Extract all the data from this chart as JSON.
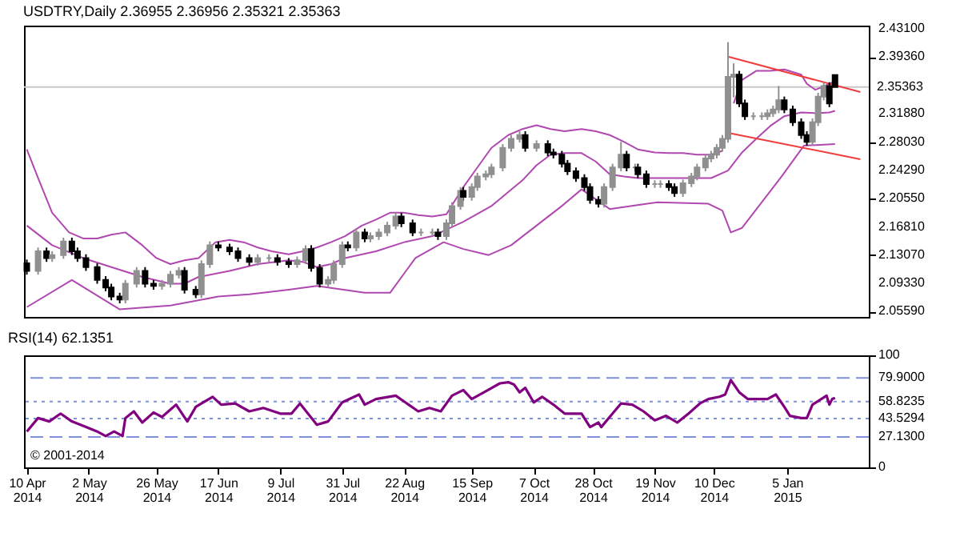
{
  "chart_data": [
    {
      "type": "candlestick",
      "title": "USDTRY,Daily 2.36955 2.36956 2.35321 2.35363",
      "x": [
        "2014-04-10",
        "2014-04-14",
        "2014-04-17",
        "2014-04-19",
        "2014-04-23",
        "2014-04-26",
        "2014-04-28",
        "2014-05-01",
        "2014-05-05",
        "2014-05-08",
        "2014-05-10",
        "2014-05-13",
        "2014-05-15",
        "2014-05-19",
        "2014-05-22",
        "2014-05-25",
        "2014-05-28",
        "2014-05-31",
        "2014-06-03",
        "2014-06-05",
        "2014-06-09",
        "2014-06-11",
        "2014-06-14",
        "2014-06-17",
        "2014-06-21",
        "2014-06-24",
        "2014-06-28",
        "2014-07-01",
        "2014-07-05",
        "2014-07-08",
        "2014-07-12",
        "2014-07-15",
        "2014-07-18",
        "2014-07-20",
        "2014-07-23",
        "2014-07-26",
        "2014-07-28",
        "2014-07-31",
        "2014-08-02",
        "2014-08-05",
        "2014-08-08",
        "2014-08-10",
        "2014-08-13",
        "2014-08-16",
        "2014-08-19",
        "2014-08-21",
        "2014-08-25",
        "2014-08-28",
        "2014-09-01",
        "2014-09-03",
        "2014-09-06",
        "2014-09-08",
        "2014-09-11",
        "2014-09-12",
        "2014-09-15",
        "2014-09-17",
        "2014-09-20",
        "2014-09-22",
        "2014-09-26",
        "2014-09-29",
        "2014-10-02",
        "2014-10-04",
        "2014-10-08",
        "2014-10-12",
        "2014-10-14",
        "2014-10-17",
        "2014-10-19",
        "2014-10-22",
        "2014-10-25",
        "2014-10-27",
        "2014-10-30",
        "2014-11-01",
        "2014-11-04",
        "2014-11-07",
        "2014-11-09",
        "2014-11-12",
        "2014-11-13",
        "2014-11-16",
        "2014-11-19",
        "2014-11-21",
        "2014-11-24",
        "2014-11-26",
        "2014-11-29",
        "2014-12-02",
        "2014-12-04",
        "2014-12-07",
        "2014-12-09",
        "2014-12-11",
        "2014-12-13",
        "2014-12-15",
        "2014-12-17",
        "2014-12-19",
        "2014-12-21",
        "2014-12-24",
        "2014-12-27",
        "2014-12-29",
        "2014-12-31",
        "2015-01-02",
        "2015-01-04",
        "2015-01-07",
        "2015-01-10",
        "2015-01-12",
        "2015-01-14",
        "2015-01-16",
        "2015-01-18",
        "2015-01-20",
        "2015-01-22"
      ],
      "ohlc": [
        [
          2.12,
          2.125,
          2.105,
          2.11
        ],
        [
          2.11,
          2.141,
          2.105,
          2.136
        ],
        [
          2.136,
          2.141,
          2.122,
          2.127
        ],
        [
          2.127,
          2.136,
          2.122,
          2.131
        ],
        [
          2.131,
          2.154,
          2.126,
          2.149
        ],
        [
          2.149,
          2.154,
          2.131,
          2.136
        ],
        [
          2.136,
          2.141,
          2.122,
          2.127
        ],
        [
          2.127,
          2.132,
          2.11,
          2.115
        ],
        [
          2.115,
          2.12,
          2.093,
          2.098
        ],
        [
          2.098,
          2.103,
          2.083,
          2.088
        ],
        [
          2.088,
          2.093,
          2.071,
          2.076
        ],
        [
          2.076,
          2.081,
          2.067,
          2.072
        ],
        [
          2.072,
          2.098,
          2.067,
          2.093
        ],
        [
          2.093,
          2.115,
          2.088,
          2.11
        ],
        [
          2.11,
          2.115,
          2.088,
          2.093
        ],
        [
          2.093,
          2.098,
          2.085,
          2.09
        ],
        [
          2.09,
          2.098,
          2.085,
          2.093
        ],
        [
          2.093,
          2.11,
          2.088,
          2.105
        ],
        [
          2.105,
          2.115,
          2.1,
          2.11
        ],
        [
          2.11,
          2.115,
          2.08,
          2.085
        ],
        [
          2.085,
          2.09,
          2.074,
          2.079
        ],
        [
          2.079,
          2.124,
          2.074,
          2.119
        ],
        [
          2.119,
          2.149,
          2.114,
          2.144
        ],
        [
          2.144,
          2.149,
          2.136,
          2.141
        ],
        [
          2.141,
          2.146,
          2.131,
          2.136
        ],
        [
          2.136,
          2.141,
          2.122,
          2.127
        ],
        [
          2.127,
          2.132,
          2.117,
          2.122
        ],
        [
          2.122,
          2.132,
          2.117,
          2.127
        ],
        [
          2.127,
          2.132,
          2.122,
          2.127
        ],
        [
          2.127,
          2.132,
          2.117,
          2.122
        ],
        [
          2.122,
          2.127,
          2.114,
          2.119
        ],
        [
          2.119,
          2.129,
          2.114,
          2.124
        ],
        [
          2.124,
          2.144,
          2.119,
          2.139
        ],
        [
          2.139,
          2.144,
          2.109,
          2.114
        ],
        [
          2.114,
          2.119,
          2.088,
          2.093
        ],
        [
          2.093,
          2.103,
          2.088,
          2.098
        ],
        [
          2.098,
          2.124,
          2.093,
          2.119
        ],
        [
          2.119,
          2.149,
          2.114,
          2.144
        ],
        [
          2.144,
          2.149,
          2.136,
          2.141
        ],
        [
          2.141,
          2.166,
          2.136,
          2.161
        ],
        [
          2.161,
          2.166,
          2.148,
          2.153
        ],
        [
          2.153,
          2.161,
          2.148,
          2.156
        ],
        [
          2.156,
          2.166,
          2.151,
          2.161
        ],
        [
          2.161,
          2.175,
          2.156,
          2.17
        ],
        [
          2.17,
          2.187,
          2.165,
          2.182
        ],
        [
          2.182,
          2.187,
          2.168,
          2.173
        ],
        [
          2.173,
          2.178,
          2.156,
          2.161
        ],
        [
          2.161,
          2.166,
          2.156,
          2.161
        ],
        [
          2.161,
          2.166,
          2.156,
          2.161
        ],
        [
          2.161,
          2.166,
          2.151,
          2.156
        ],
        [
          2.156,
          2.178,
          2.151,
          2.173
        ],
        [
          2.173,
          2.201,
          2.168,
          2.196
        ],
        [
          2.196,
          2.221,
          2.191,
          2.216
        ],
        [
          2.216,
          2.221,
          2.203,
          2.208
        ],
        [
          2.208,
          2.226,
          2.203,
          2.221
        ],
        [
          2.221,
          2.24,
          2.216,
          2.235
        ],
        [
          2.235,
          2.243,
          2.23,
          2.238
        ],
        [
          2.238,
          2.252,
          2.233,
          2.247
        ],
        [
          2.247,
          2.278,
          2.242,
          2.273
        ],
        [
          2.273,
          2.29,
          2.268,
          2.285
        ],
        [
          2.285,
          2.295,
          2.28,
          2.29
        ],
        [
          2.29,
          2.295,
          2.268,
          2.273
        ],
        [
          2.273,
          2.283,
          2.268,
          2.278
        ],
        [
          2.278,
          2.283,
          2.262,
          2.267
        ],
        [
          2.267,
          2.272,
          2.259,
          2.264
        ],
        [
          2.264,
          2.269,
          2.247,
          2.252
        ],
        [
          2.252,
          2.257,
          2.237,
          2.242
        ],
        [
          2.242,
          2.247,
          2.228,
          2.233
        ],
        [
          2.233,
          2.238,
          2.216,
          2.221
        ],
        [
          2.221,
          2.226,
          2.199,
          2.204
        ],
        [
          2.204,
          2.209,
          2.194,
          2.199
        ],
        [
          2.199,
          2.226,
          2.194,
          2.221
        ],
        [
          2.221,
          2.252,
          2.216,
          2.247
        ],
        [
          2.247,
          2.281,
          2.242,
          2.264
        ],
        [
          2.264,
          2.269,
          2.242,
          2.247
        ],
        [
          2.247,
          2.252,
          2.242,
          2.247
        ],
        [
          2.247,
          2.252,
          2.233,
          2.238
        ],
        [
          2.238,
          2.243,
          2.22,
          2.225
        ],
        [
          2.225,
          2.23,
          2.22,
          2.225
        ],
        [
          2.225,
          2.23,
          2.22,
          2.225
        ],
        [
          2.225,
          2.23,
          2.216,
          2.221
        ],
        [
          2.221,
          2.226,
          2.208,
          2.213
        ],
        [
          2.213,
          2.231,
          2.208,
          2.226
        ],
        [
          2.226,
          2.24,
          2.221,
          2.235
        ],
        [
          2.235,
          2.252,
          2.23,
          2.247
        ],
        [
          2.247,
          2.264,
          2.242,
          2.259
        ],
        [
          2.259,
          2.269,
          2.254,
          2.264
        ],
        [
          2.264,
          2.278,
          2.259,
          2.273
        ],
        [
          2.273,
          2.29,
          2.268,
          2.285
        ],
        [
          2.285,
          2.413,
          2.28,
          2.367
        ],
        [
          2.367,
          2.385,
          2.34,
          2.37
        ],
        [
          2.37,
          2.375,
          2.327,
          2.332
        ],
        [
          2.332,
          2.337,
          2.31,
          2.315
        ],
        [
          2.315,
          2.32,
          2.31,
          2.315
        ],
        [
          2.315,
          2.32,
          2.31,
          2.315
        ],
        [
          2.315,
          2.324,
          2.31,
          2.319
        ],
        [
          2.319,
          2.329,
          2.314,
          2.324
        ],
        [
          2.324,
          2.355,
          2.319,
          2.336
        ],
        [
          2.336,
          2.341,
          2.319,
          2.324
        ],
        [
          2.324,
          2.329,
          2.302,
          2.307
        ],
        [
          2.307,
          2.312,
          2.285,
          2.29
        ],
        [
          2.29,
          2.295,
          2.276,
          2.281
        ],
        [
          2.281,
          2.312,
          2.276,
          2.307
        ],
        [
          2.307,
          2.346,
          2.302,
          2.341
        ],
        [
          2.341,
          2.36,
          2.336,
          2.355
        ],
        [
          2.355,
          2.36,
          2.327,
          2.332
        ],
        [
          2.36955,
          2.36956,
          2.35321,
          2.35363
        ]
      ],
      "series": [
        {
          "type": "line",
          "color": "#b048b0",
          "x": [
            "2014-04-10",
            "2014-04-14",
            "2014-04-19",
            "2014-04-25",
            "2014-04-30",
            "2014-05-05",
            "2014-05-10",
            "2014-05-15",
            "2014-05-21",
            "2014-05-26",
            "2014-05-31",
            "2014-06-05",
            "2014-06-10",
            "2014-06-16",
            "2014-06-21",
            "2014-06-26",
            "2014-07-01",
            "2014-07-06",
            "2014-07-12",
            "2014-07-17",
            "2014-07-22",
            "2014-07-27",
            "2014-08-01",
            "2014-08-07",
            "2014-08-12",
            "2014-08-17",
            "2014-08-22",
            "2014-08-27",
            "2014-09-01",
            "2014-09-06",
            "2014-09-12",
            "2014-09-17",
            "2014-09-22",
            "2014-09-28",
            "2014-10-03",
            "2014-10-08",
            "2014-10-13",
            "2014-10-18",
            "2014-10-24",
            "2014-10-29",
            "2014-11-03",
            "2014-11-08",
            "2014-11-13",
            "2014-11-19",
            "2014-11-24",
            "2014-11-29",
            "2014-12-04",
            "2014-12-09",
            "2014-12-13",
            "2014-12-15",
            "2014-12-17",
            "2014-12-20",
            "2014-12-25",
            "2014-12-30",
            "2015-01-04",
            "2015-01-10",
            "2015-01-12",
            "2015-01-15",
            "2015-01-17",
            "2015-01-20",
            "2015-01-22"
          ],
          "values": [
            2.271,
            2.233,
            2.187,
            2.161,
            2.153,
            2.153,
            2.158,
            2.161,
            2.144,
            2.127,
            2.119,
            2.124,
            2.127,
            2.148,
            2.151,
            2.148,
            2.141,
            2.136,
            2.132,
            2.136,
            2.141,
            2.148,
            2.156,
            2.17,
            2.178,
            2.187,
            2.187,
            2.184,
            2.182,
            2.185,
            2.221,
            2.247,
            2.273,
            2.29,
            2.298,
            2.303,
            2.298,
            2.295,
            2.298,
            2.295,
            2.29,
            2.281,
            2.271,
            2.267,
            2.266,
            2.266,
            2.264,
            2.264,
            2.269,
            null,
            2.332,
            2.363,
            2.375,
            2.375,
            2.377,
            2.37,
            2.358,
            2.35,
            2.353,
            2.358,
            2.361
          ]
        },
        {
          "type": "line",
          "color": "#b048b0",
          "x": [
            "2014-04-10",
            "2014-04-19",
            "2014-04-30",
            "2014-05-10",
            "2014-05-21",
            "2014-05-31",
            "2014-06-05",
            "2014-06-10",
            "2014-06-21",
            "2014-07-01",
            "2014-07-12",
            "2014-07-17",
            "2014-07-22",
            "2014-07-27",
            "2014-08-01",
            "2014-08-12",
            "2014-08-22",
            "2014-09-01",
            "2014-09-12",
            "2014-09-22",
            "2014-10-03",
            "2014-10-08",
            "2014-10-13",
            "2014-10-18",
            "2014-10-24",
            "2014-10-29",
            "2014-11-03",
            "2014-11-08",
            "2014-11-13",
            "2014-11-24",
            "2014-12-04",
            "2014-12-09",
            "2014-12-15",
            "2014-12-20",
            "2014-12-25",
            "2014-12-30",
            "2015-01-04",
            "2015-01-10",
            "2015-01-15",
            "2015-01-20",
            "2015-01-22"
          ],
          "values": [
            2.17,
            2.144,
            2.127,
            2.115,
            2.102,
            2.093,
            2.093,
            2.102,
            2.11,
            2.119,
            2.124,
            2.122,
            2.115,
            2.119,
            2.127,
            2.136,
            2.148,
            2.156,
            2.175,
            2.196,
            2.23,
            2.25,
            2.264,
            2.266,
            2.266,
            2.255,
            2.238,
            2.235,
            2.233,
            2.233,
            2.233,
            2.233,
            2.243,
            2.267,
            2.285,
            2.302,
            2.315,
            2.32,
            2.319,
            2.32,
            2.322
          ]
        },
        {
          "type": "line",
          "color": "#b048b0",
          "x": [
            "2014-04-10",
            "2014-04-26",
            "2014-05-13",
            "2014-05-31",
            "2014-06-17",
            "2014-06-28",
            "2014-07-12",
            "2014-07-22",
            "2014-08-08",
            "2014-08-17",
            "2014-08-26",
            "2014-09-05",
            "2014-09-12",
            "2014-09-21",
            "2014-09-29",
            "2014-10-17",
            "2014-10-24",
            "2014-11-03",
            "2014-11-20",
            "2014-12-08",
            "2014-12-13",
            "2014-12-16",
            "2014-12-20",
            "2015-01-03",
            "2015-01-11",
            "2015-01-22"
          ],
          "values": [
            2.062,
            2.098,
            2.059,
            2.064,
            2.076,
            2.079,
            2.085,
            2.09,
            2.081,
            2.081,
            2.127,
            2.148,
            2.139,
            2.131,
            2.144,
            2.196,
            2.218,
            2.192,
            2.201,
            2.199,
            2.19,
            2.161,
            2.167,
            2.235,
            2.276,
            2.278
          ]
        },
        {
          "type": "line",
          "color": "#f03c3c",
          "x": [
            "2014-12-15",
            "2015-01-31"
          ],
          "values": [
            2.394,
            2.347
          ]
        },
        {
          "type": "line",
          "color": "#f03c3c",
          "x": [
            "2014-12-15",
            "2015-01-31"
          ],
          "values": [
            2.293,
            2.258
          ]
        }
      ],
      "xlim": [
        "2014-04-09",
        "2015-02-03"
      ],
      "ylim": [
        2.049,
        2.435
      ],
      "yticks": [
        {
          "value": 2.431,
          "label": "2.43100"
        },
        {
          "value": 2.3936,
          "label": "2.39360"
        },
        {
          "value": 2.3188,
          "label": "2.31880"
        },
        {
          "value": 2.2803,
          "label": "2.28030"
        },
        {
          "value": 2.2429,
          "label": "2.24290"
        },
        {
          "value": 2.2055,
          "label": "2.20550"
        },
        {
          "value": 2.1681,
          "label": "2.16810"
        },
        {
          "value": 2.1307,
          "label": "2.13070"
        },
        {
          "value": 2.0933,
          "label": "2.09330"
        },
        {
          "value": 2.0559,
          "label": "2.05590"
        }
      ],
      "ref_lines": [
        {
          "axis": "y",
          "value": 2.35363,
          "label": "2.35363",
          "color": "#c8c8c8"
        }
      ],
      "tick_labels": "y"
    },
    {
      "type": "line",
      "title": "RSI(14) 62.1351",
      "series": [
        {
          "color": "#800080",
          "x": [
            "2014-04-10",
            "2014-04-14",
            "2014-04-18",
            "2014-04-22",
            "2014-04-26",
            "2014-05-01",
            "2014-05-05",
            "2014-05-08",
            "2014-05-11",
            "2014-05-14",
            "2014-05-15",
            "2014-05-18",
            "2014-05-21",
            "2014-05-25",
            "2014-05-28",
            "2014-06-02",
            "2014-06-06",
            "2014-06-09",
            "2014-06-15",
            "2014-06-18",
            "2014-06-23",
            "2014-06-28",
            "2014-07-03",
            "2014-07-09",
            "2014-07-13",
            "2014-07-16",
            "2014-07-22",
            "2014-07-26",
            "2014-07-31",
            "2014-08-06",
            "2014-08-08",
            "2014-08-12",
            "2014-08-19",
            "2014-08-27",
            "2014-08-31",
            "2014-09-04",
            "2014-09-08",
            "2014-09-12",
            "2014-09-15",
            "2014-09-20",
            "2014-09-25",
            "2014-09-28",
            "2014-09-30",
            "2014-10-02",
            "2014-10-04",
            "2014-10-07",
            "2014-10-10",
            "2014-10-14",
            "2014-10-18",
            "2014-10-24",
            "2014-10-27",
            "2014-10-30",
            "2014-10-31",
            "2014-11-04",
            "2014-11-07",
            "2014-11-11",
            "2014-11-15",
            "2014-11-19",
            "2014-11-23",
            "2014-11-27",
            "2014-12-01",
            "2014-12-05",
            "2014-12-08",
            "2014-12-12",
            "2014-12-14",
            "2014-12-16",
            "2014-12-19",
            "2014-12-22",
            "2014-12-26",
            "2014-12-29",
            "2015-01-01",
            "2015-01-04",
            "2015-01-06",
            "2015-01-10",
            "2015-01-12",
            "2015-01-14",
            "2015-01-19",
            "2015-01-20",
            "2015-01-21",
            "2015-01-22"
          ],
          "values": [
            32,
            44,
            41,
            48,
            41,
            36,
            32,
            28,
            32,
            28,
            44,
            50,
            40,
            49,
            45,
            56,
            41,
            54,
            63,
            56,
            57,
            50,
            53,
            48,
            48,
            57,
            38,
            41,
            58,
            65,
            56,
            61,
            64,
            50,
            53,
            50,
            64,
            69,
            61,
            68,
            75,
            76,
            74,
            67,
            71,
            58,
            63,
            56,
            48,
            48,
            36,
            40,
            36,
            48,
            57,
            56,
            50,
            42,
            46,
            40,
            48,
            57,
            61,
            63,
            65,
            78,
            67,
            61,
            61,
            61,
            65,
            54,
            46,
            44,
            44,
            56,
            64,
            56,
            61,
            62
          ]
        }
      ],
      "xlim": [
        "2014-04-09",
        "2015-02-03"
      ],
      "xticks": [
        {
          "value": "2014-04-10",
          "label": "10 Apr 2014"
        },
        {
          "value": "2014-05-02",
          "label": "2 May 2014"
        },
        {
          "value": "2014-05-26",
          "label": "26 May 2014"
        },
        {
          "value": "2014-06-17",
          "label": "17 Jun 2014"
        },
        {
          "value": "2014-07-09",
          "label": "9 Jul 2014"
        },
        {
          "value": "2014-07-31",
          "label": "31 Jul 2014"
        },
        {
          "value": "2014-08-22",
          "label": "22 Aug 2014"
        },
        {
          "value": "2014-09-15",
          "label": "15 Sep 2014"
        },
        {
          "value": "2014-10-07",
          "label": "7 Oct 2014"
        },
        {
          "value": "2014-10-28",
          "label": "28 Oct 2014"
        },
        {
          "value": "2014-11-19",
          "label": "19 Nov 2014"
        },
        {
          "value": "2014-12-10",
          "label": "10 Dec 2014"
        },
        {
          "value": "2015-01-05",
          "label": "5 Jan 2015"
        }
      ],
      "ylim": [
        0,
        100
      ],
      "yticks": [
        100,
        {
          "value": 79.9,
          "label": "79.9000"
        },
        58.8235,
        43.5294,
        {
          "value": 27.13,
          "label": "27.1300"
        },
        0
      ],
      "ref_lines": [
        {
          "axis": "y",
          "value": 79.9,
          "color": "#7d92d8",
          "line_style": "dashed"
        },
        {
          "axis": "y",
          "value": 58.8235,
          "color": "#7d92d8",
          "line_style": "dotted"
        },
        {
          "axis": "y",
          "value": 43.5294,
          "color": "#7d92d8",
          "line_style": "dotted"
        },
        {
          "axis": "y",
          "value": 27.13,
          "color": "#7d92d8",
          "line_style": "dashed"
        }
      ],
      "annotations": [
        "© 2001-2014"
      ]
    }
  ]
}
